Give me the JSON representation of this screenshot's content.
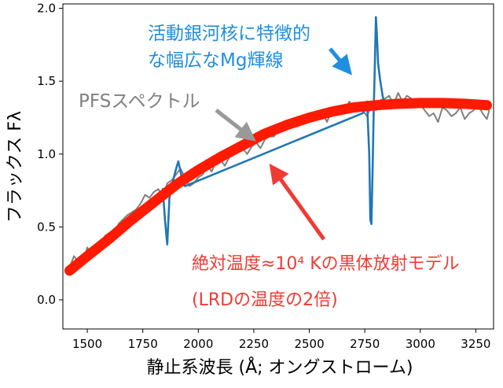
{
  "chart_data": {
    "type": "line",
    "title": "",
    "xlabel": "静止系波長 (Å; オングストローム)",
    "ylabel": "フラックス Fλ",
    "xlim": [
      1390,
      3330
    ],
    "ylim": [
      -0.2,
      2.03
    ],
    "x_ticks": [
      1500,
      1750,
      2000,
      2250,
      2500,
      2750,
      3000,
      3250
    ],
    "y_ticks": [
      0.0,
      0.5,
      1.0,
      1.5,
      2.0
    ],
    "grid": false,
    "series": [
      {
        "name": "PFSスペクトル",
        "color": "#7f7f7f",
        "x": [
          1420,
          1440,
          1460,
          1480,
          1500,
          1520,
          1540,
          1560,
          1580,
          1600,
          1620,
          1640,
          1660,
          1680,
          1700,
          1720,
          1740,
          1760,
          1780,
          1800,
          1820,
          1840,
          1860,
          1880,
          1900,
          1920,
          1940,
          1960,
          1980,
          2000,
          2020,
          2040,
          2060,
          2080,
          2100,
          2120,
          2140,
          2160,
          2180,
          2200,
          2220,
          2240,
          2260,
          2280,
          2300,
          2320,
          2340,
          2360,
          2380,
          2400,
          2420,
          2440,
          2460,
          2480,
          2500,
          2520,
          2540,
          2560,
          2580,
          2600,
          2620,
          2640,
          2660,
          2680,
          2700,
          2720,
          2740,
          2760,
          2780,
          2800,
          2820,
          2840,
          2860,
          2880,
          2900,
          2920,
          2940,
          2960,
          2980,
          3000,
          3020,
          3040,
          3060,
          3080,
          3100,
          3120,
          3140,
          3160,
          3180,
          3200,
          3220,
          3240,
          3260,
          3280,
          3300,
          3310
        ],
        "y": [
          0.22,
          0.3,
          0.26,
          0.24,
          0.36,
          0.3,
          0.34,
          0.38,
          0.44,
          0.46,
          0.42,
          0.52,
          0.55,
          0.58,
          0.6,
          0.62,
          0.66,
          0.72,
          0.7,
          0.74,
          0.76,
          0.7,
          0.8,
          0.82,
          0.86,
          0.9,
          0.84,
          0.78,
          0.8,
          0.84,
          0.86,
          0.92,
          0.88,
          0.95,
          0.96,
          0.92,
          0.98,
          1.0,
          1.02,
          1.04,
          1.0,
          1.05,
          1.08,
          1.04,
          1.1,
          1.12,
          1.12,
          1.16,
          1.18,
          1.2,
          1.18,
          1.24,
          1.2,
          1.26,
          1.22,
          1.25,
          1.26,
          1.28,
          1.22,
          1.3,
          1.28,
          1.32,
          1.3,
          1.36,
          1.32,
          1.34,
          1.3,
          1.26,
          1.34,
          1.3,
          1.37,
          1.38,
          1.4,
          1.34,
          1.42,
          1.36,
          1.4,
          1.38,
          1.32,
          1.34,
          1.3,
          1.26,
          1.28,
          1.22,
          1.32,
          1.3,
          1.26,
          1.28,
          1.32,
          1.24,
          1.28,
          1.3,
          1.34,
          1.28,
          1.24,
          1.3
        ]
      },
      {
        "name": "活動銀河核に特徴的な幅広なMg輝線",
        "color": "#1f77b4",
        "x": [
          1840,
          1850,
          1860,
          1870,
          1880,
          1890,
          1900,
          1910,
          1920,
          1930,
          1940,
          2740,
          2750,
          2760,
          2770,
          2775,
          2780,
          2785,
          2790,
          2795,
          2800,
          2805,
          2810,
          2820,
          2830,
          2840
        ],
        "y": [
          0.76,
          0.55,
          0.38,
          0.7,
          0.78,
          0.84,
          0.9,
          0.95,
          0.88,
          0.8,
          0.78,
          1.28,
          1.3,
          1.36,
          1.0,
          0.55,
          0.52,
          0.9,
          1.3,
          1.6,
          1.94,
          1.8,
          1.62,
          1.5,
          1.4,
          1.34
        ]
      },
      {
        "name": "絶対温度≈10⁴ Kの黒体放射モデル",
        "color": "#ff1a00",
        "x": [
          1420,
          1500,
          1600,
          1700,
          1800,
          1900,
          2000,
          2100,
          2200,
          2300,
          2400,
          2500,
          2600,
          2700,
          2800,
          2900,
          3000,
          3100,
          3200,
          3300
        ],
        "y": [
          0.2,
          0.3,
          0.42,
          0.55,
          0.67,
          0.79,
          0.89,
          0.98,
          1.06,
          1.14,
          1.2,
          1.25,
          1.29,
          1.32,
          1.335,
          1.345,
          1.35,
          1.35,
          1.345,
          1.335
        ]
      }
    ],
    "annotations": [
      {
        "text_lines": [
          "活動銀河核に特徴的",
          "な幅広なMg輝線"
        ],
        "color": "#1f8fe0"
      },
      {
        "text_lines": [
          "PFSスペクトル"
        ],
        "color": "#808080"
      },
      {
        "text_lines": [
          "絶対温度≈10⁴ Kの黒体放射モデル",
          "(LRDの温度の2倍)"
        ],
        "color": "#ef3b33"
      }
    ]
  }
}
